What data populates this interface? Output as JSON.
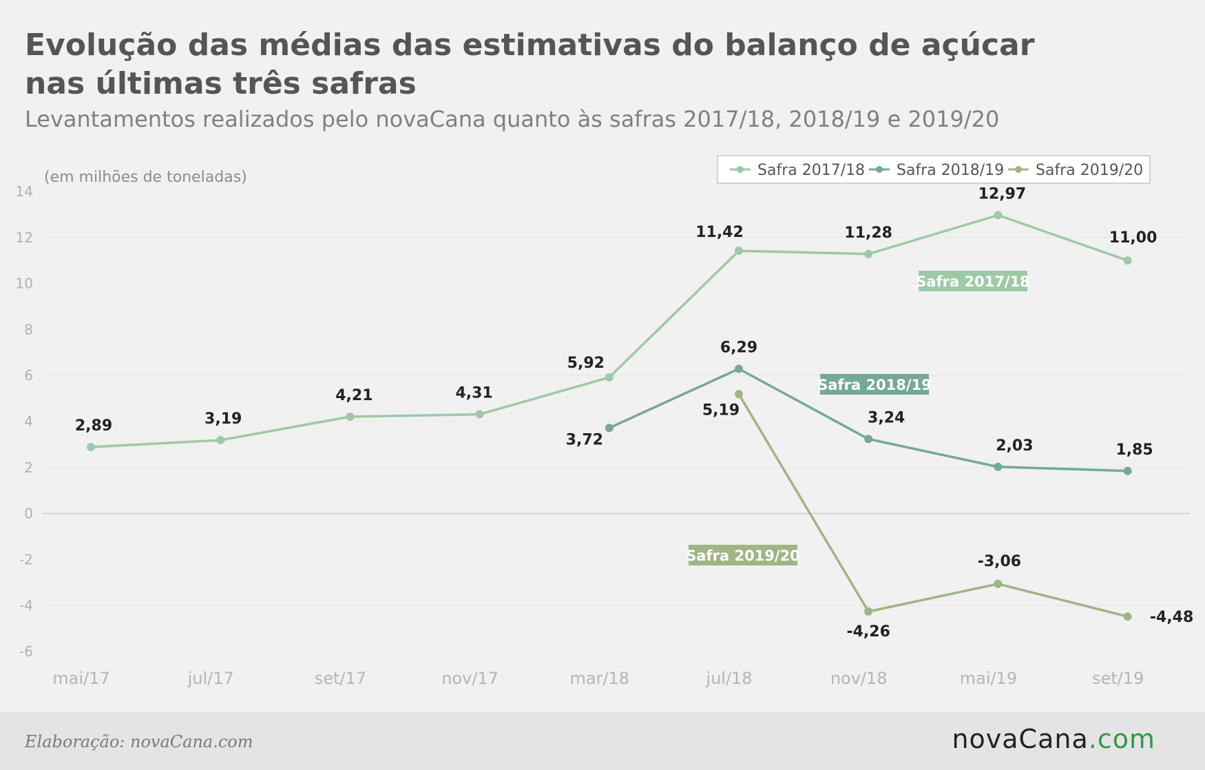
{
  "header": {
    "title_line1": "Evolução das médias das estimativas do balanço de açúcar",
    "title_line2": "nas últimas três safras",
    "subtitle": "Levantamentos realizados pelo novaCana quanto às safras 2017/18, 2018/19 e 2019/20"
  },
  "footer": {
    "credit": "Elaboração: novaCana.com",
    "brand_part1": "novaCana",
    "brand_part2": ".com"
  },
  "chart_data": {
    "type": "line",
    "ylabel": "(em milhões de toneladas)",
    "categories": [
      "mai/17",
      "jul/17",
      "set/17",
      "nov/17",
      "mar/18",
      "jul/18",
      "nov/18",
      "mai/19",
      "set/19"
    ],
    "ylim": [
      -6,
      14
    ],
    "yticks": [
      14,
      12,
      10,
      8,
      6,
      4,
      2,
      0,
      -2,
      -4,
      -6
    ],
    "grid": true,
    "legend_position": "top-right",
    "series": [
      {
        "name": "Safra 2017/18",
        "color": "#9dcaa6",
        "values": [
          2.89,
          3.19,
          4.21,
          4.31,
          5.92,
          11.42,
          11.28,
          12.97,
          11.0
        ],
        "labels": [
          "2,89",
          "3,19",
          "4,21",
          "4,31",
          "5,92",
          "11,42",
          "11,28",
          "12,97",
          "11,00"
        ]
      },
      {
        "name": "Safra 2018/19",
        "color": "#74a898",
        "values": [
          null,
          null,
          null,
          null,
          3.72,
          6.29,
          3.24,
          2.03,
          1.85
        ],
        "labels": [
          null,
          null,
          null,
          null,
          "3,72",
          "6,29",
          "3,24",
          "2,03",
          "1,85"
        ]
      },
      {
        "name": "Safra 2019/20",
        "color": "#9fb584",
        "values": [
          null,
          null,
          null,
          null,
          null,
          5.19,
          -4.26,
          -3.06,
          -4.48
        ],
        "labels": [
          null,
          null,
          null,
          null,
          null,
          "5,19",
          "-4,26",
          "-3,06",
          "-4,48"
        ]
      }
    ]
  }
}
